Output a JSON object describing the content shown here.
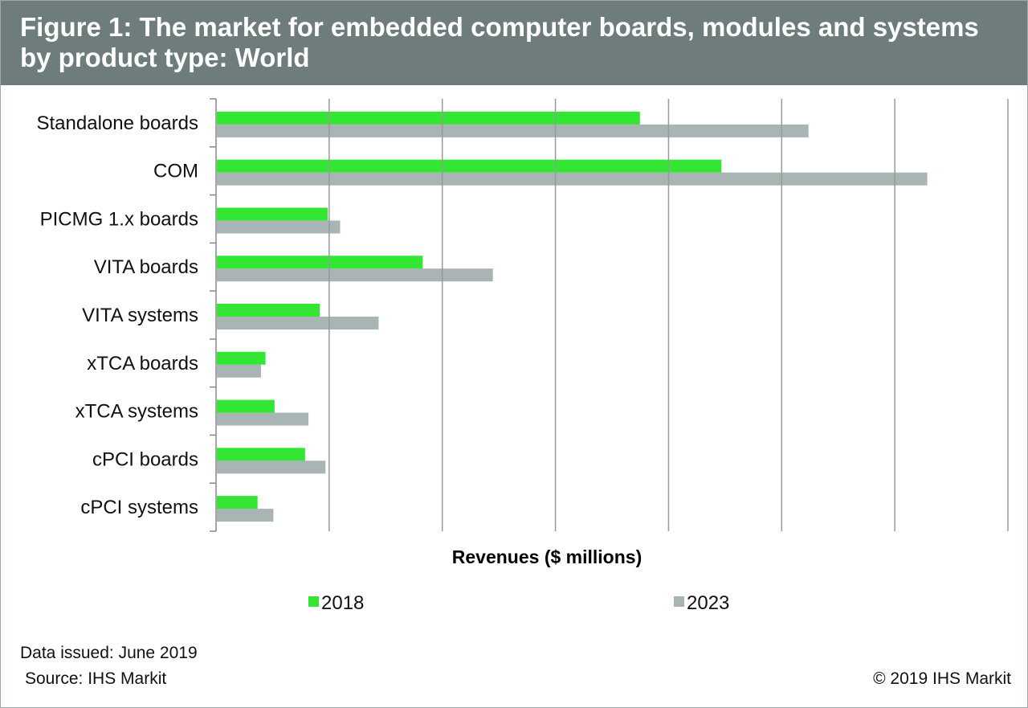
{
  "header": {
    "title": "Figure 1: The market for embedded computer boards, modules and systems by product type: World"
  },
  "chart_data": {
    "type": "bar",
    "orientation": "horizontal",
    "title": "Figure 1: The market for embedded computer boards, modules and systems by product type: World",
    "xlabel": "Revenues ($ millions)",
    "ylabel": "",
    "note": "Values in gridline units; axis tick labels not shown",
    "xlim": [
      0,
      7
    ],
    "grid": true,
    "legend_position": "bottom",
    "categories": [
      "Standalone boards",
      "COM",
      "PICMG 1.x boards",
      "VITA boards",
      "VITA systems",
      "xTCA boards",
      "xTCA systems",
      "cPCI boards",
      "cPCI systems"
    ],
    "series": [
      {
        "name": "2018",
        "color": "#33e633",
        "values": [
          3.74,
          4.46,
          0.98,
          1.82,
          0.91,
          0.43,
          0.51,
          0.78,
          0.36
        ]
      },
      {
        "name": "2023",
        "color": "#a9b4b4",
        "values": [
          5.23,
          6.28,
          1.09,
          2.44,
          1.43,
          0.39,
          0.81,
          0.96,
          0.5
        ]
      }
    ]
  },
  "footer": {
    "issued": "Data issued: June 2019",
    "source": "Source: IHS Markit",
    "copyright": "© 2019 IHS Markit"
  }
}
